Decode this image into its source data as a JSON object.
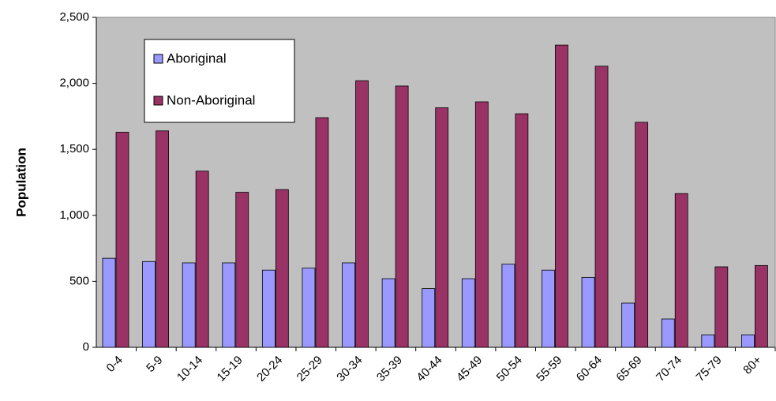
{
  "chart_data": {
    "type": "bar",
    "y_label": "Population",
    "categories": [
      "0-4",
      "5-9",
      "10-14",
      "15-19",
      "20-24",
      "25-29",
      "30-34",
      "35-39",
      "40-44",
      "45-49",
      "50-54",
      "55-59",
      "60-64",
      "65-69",
      "70-74",
      "75-79",
      "80+"
    ],
    "series": [
      {
        "name": "Aboriginal",
        "color": "#9999ff",
        "values": [
          675,
          650,
          640,
          640,
          585,
          600,
          640,
          520,
          445,
          520,
          630,
          585,
          530,
          335,
          215,
          95,
          95
        ]
      },
      {
        "name": "Non-Aboriginal",
        "color": "#993366",
        "values": [
          1630,
          1640,
          1335,
          1175,
          1195,
          1740,
          2020,
          1980,
          1815,
          1860,
          1770,
          2290,
          2130,
          1705,
          1165,
          610,
          620
        ]
      }
    ],
    "ylim": [
      0,
      2500
    ],
    "yticks": [
      0,
      500,
      {
        "value": 1000,
        "label": "1,000"
      },
      {
        "value": 1500,
        "label": "1,500"
      },
      {
        "value": 2000,
        "label": "2,000"
      },
      {
        "value": 2500,
        "label": "2,500"
      }
    ],
    "plot_background": "#c0c0c0",
    "legend": "upper left"
  }
}
